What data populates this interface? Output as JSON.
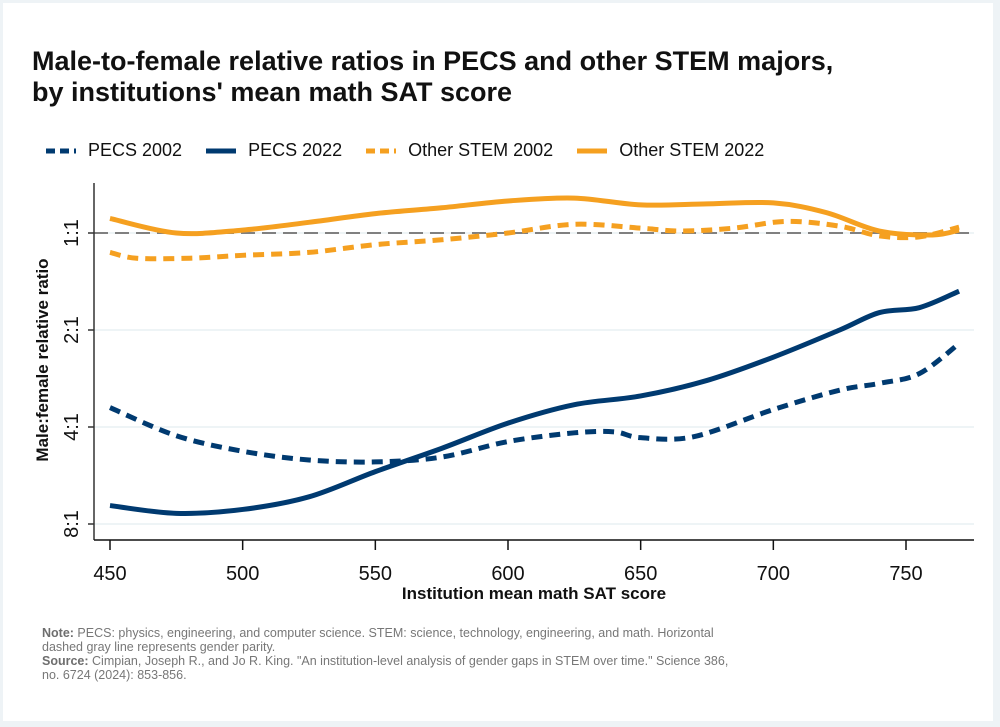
{
  "title_line1": "Male-to-female relative ratios in PECS and other STEM majors,",
  "title_line2": "by institutions' mean math SAT score",
  "legend": [
    {
      "label": "PECS 2002",
      "color": "#003a70",
      "style": "dashed"
    },
    {
      "label": "PECS 2022",
      "color": "#003a70",
      "style": "solid"
    },
    {
      "label": "Other STEM 2002",
      "color": "#f5a020",
      "style": "dashed"
    },
    {
      "label": "Other STEM 2022",
      "color": "#f5a020",
      "style": "solid"
    }
  ],
  "notes": {
    "note_label": "Note:",
    "note_text": " PECS: physics, engineering, and computer science. STEM: science, technology, engineering, and math. Horizontal dashed gray line represents gender parity.",
    "source_label": "Source:",
    "source_text": " Cimpian, Joseph R., and Jo R. King. \"An institution-level analysis of gender gaps in STEM over time.\" Science 386, no. 6724 (2024): 853-856."
  },
  "chart_data": {
    "type": "line",
    "title": "Male-to-female relative ratios in PECS and other STEM majors, by institutions' mean math SAT score",
    "xlabel": "Institution mean math SAT score",
    "ylabel": "Male:female relative ratio",
    "xlim": [
      441,
      776
    ],
    "x_ticks": [
      450,
      500,
      550,
      600,
      650,
      700,
      750
    ],
    "y_scale": "log2 of male:female ratio (0 = 1:1; higher = more male; axis inverted so 1:1 at top)",
    "ylim_log2": [
      -0.52,
      3.17
    ],
    "y_ticks": [
      {
        "log2": 0,
        "label": "1:1"
      },
      {
        "log2": 1,
        "label": "2:1"
      },
      {
        "log2": 2,
        "label": "4:1"
      },
      {
        "log2": 3,
        "label": "8:1"
      }
    ],
    "reference_line": {
      "log2": 0,
      "label": "gender parity",
      "color": "#808080",
      "style": "dashed"
    },
    "grid": true,
    "legend_position": "top",
    "series": [
      {
        "name": "PECS 2002",
        "color": "#003a70",
        "style": "dashed",
        "x": [
          450,
          475,
          500,
          525,
          550,
          575,
          600,
          625,
          640,
          650,
          670,
          700,
          725,
          740,
          755,
          770
        ],
        "y_log2": [
          1.8,
          2.09,
          2.25,
          2.34,
          2.36,
          2.31,
          2.15,
          2.06,
          2.05,
          2.11,
          2.1,
          1.82,
          1.62,
          1.55,
          1.45,
          1.14
        ]
      },
      {
        "name": "PECS 2022",
        "color": "#003a70",
        "style": "solid",
        "x": [
          450,
          475,
          500,
          525,
          550,
          575,
          600,
          625,
          650,
          675,
          700,
          725,
          740,
          755,
          770
        ],
        "y_log2": [
          2.81,
          2.89,
          2.85,
          2.72,
          2.46,
          2.22,
          1.96,
          1.77,
          1.68,
          1.52,
          1.28,
          1.0,
          0.82,
          0.77,
          0.6
        ]
      },
      {
        "name": "Other STEM 2002",
        "color": "#f5a020",
        "style": "dashed",
        "x": [
          450,
          460,
          480,
          500,
          525,
          550,
          575,
          600,
          625,
          650,
          665,
          685,
          705,
          725,
          740,
          755,
          770
        ],
        "y_log2": [
          0.2,
          0.26,
          0.26,
          0.23,
          0.2,
          0.12,
          0.07,
          0.0,
          -0.09,
          -0.05,
          -0.02,
          -0.05,
          -0.12,
          -0.07,
          0.03,
          0.04,
          -0.06
        ]
      },
      {
        "name": "Other STEM 2022",
        "color": "#f5a020",
        "style": "solid",
        "x": [
          450,
          475,
          500,
          525,
          550,
          575,
          600,
          625,
          650,
          675,
          700,
          720,
          740,
          760,
          770
        ],
        "y_log2": [
          -0.15,
          0.0,
          -0.03,
          -0.11,
          -0.2,
          -0.26,
          -0.33,
          -0.36,
          -0.29,
          -0.3,
          -0.31,
          -0.21,
          -0.02,
          0.02,
          -0.03
        ]
      }
    ]
  }
}
